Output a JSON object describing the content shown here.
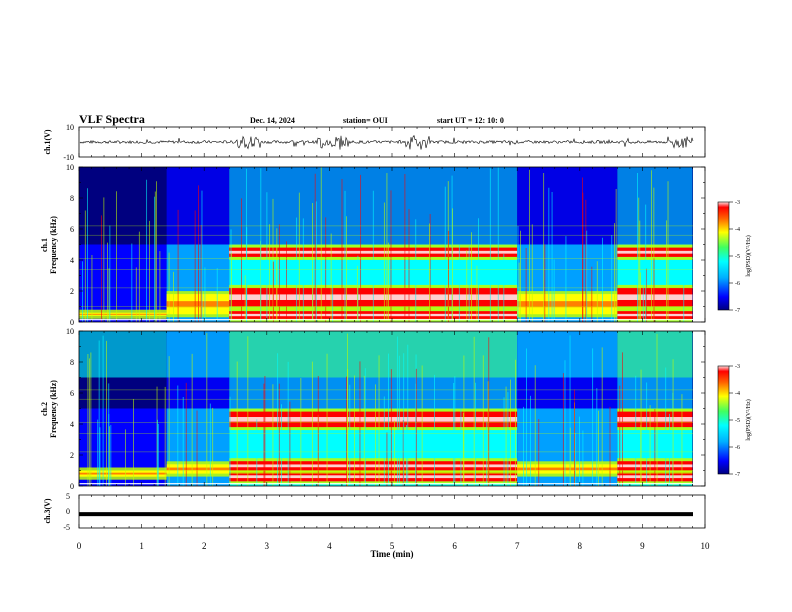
{
  "header": {
    "title": "VLF Spectra",
    "date": "Dec. 14, 2024",
    "station": "station= OUI",
    "start": "start  UT  =   12: 10: 0"
  },
  "chart_data": [
    {
      "type": "line",
      "panel": "ch1-waveform",
      "ylabel": "ch.1(V)",
      "ylim": [
        -10,
        10
      ],
      "yticks": [
        "10",
        "-10"
      ],
      "x_range": [
        0,
        10
      ],
      "baseline": 0,
      "burst_segments_min": [
        [
          2.5,
          2.9
        ],
        [
          3.8,
          4.3
        ],
        [
          5.2,
          5.6
        ],
        [
          9.4,
          9.8
        ]
      ]
    },
    {
      "type": "heatmap",
      "panel": "ch1-spectrogram",
      "ylabel": "ch.1\nFrequency (kHz)",
      "ylim": [
        0,
        10
      ],
      "yticks": [
        "0",
        "2",
        "4",
        "6",
        "8",
        "10"
      ],
      "colorbar": {
        "label": "log(PSD)(V²/Hz)",
        "range": [
          -7,
          -3
        ],
        "ticks": [
          "-3",
          "-4",
          "-5",
          "-6",
          "-7"
        ]
      },
      "segments": [
        {
          "t": [
            0.0,
            1.4
          ],
          "state": "quiet",
          "band_khz": [
            0.4,
            0.6
          ]
        },
        {
          "t": [
            1.4,
            2.4
          ],
          "state": "moderate",
          "band_khz": [
            0.5,
            1.8
          ]
        },
        {
          "t": [
            2.4,
            7.0
          ],
          "state": "active",
          "bands_khz": [
            [
              0.2,
              0.7
            ],
            [
              1.0,
              2.2
            ],
            [
              4.2,
              4.8
            ]
          ]
        },
        {
          "t": [
            7.0,
            8.6
          ],
          "state": "moderate",
          "band_khz": [
            0.5,
            1.8
          ]
        },
        {
          "t": [
            8.6,
            9.8
          ],
          "state": "active",
          "bands_khz": [
            [
              0.2,
              0.7
            ],
            [
              1.0,
              2.2
            ],
            [
              4.2,
              4.8
            ]
          ]
        }
      ]
    },
    {
      "type": "heatmap",
      "panel": "ch2-spectrogram",
      "ylabel": "ch.2\nFrequency (kHz)",
      "ylim": [
        0,
        10
      ],
      "yticks": [
        "0",
        "2",
        "4",
        "6",
        "8",
        "10"
      ],
      "colorbar": {
        "label": "log(PSD)(V²/Hz)",
        "range": [
          -7,
          -3
        ],
        "ticks": [
          "-3",
          "-4",
          "-5",
          "-6",
          "-7"
        ]
      },
      "segments": [
        {
          "t": [
            0.0,
            1.4
          ],
          "state": "quiet",
          "band_khz": [
            0.6,
            1.0
          ]
        },
        {
          "t": [
            1.4,
            2.4
          ],
          "state": "moderate",
          "band_khz": [
            0.8,
            1.4
          ]
        },
        {
          "t": [
            2.4,
            7.0
          ],
          "state": "active",
          "bands_khz": [
            [
              0.3,
              0.9
            ],
            [
              1.0,
              1.6
            ],
            [
              3.8,
              4.8
            ]
          ]
        },
        {
          "t": [
            7.0,
            8.6
          ],
          "state": "moderate",
          "band_khz": [
            0.8,
            1.4
          ]
        },
        {
          "t": [
            8.6,
            9.8
          ],
          "state": "active",
          "bands_khz": [
            [
              0.3,
              0.9
            ],
            [
              1.0,
              1.6
            ],
            [
              3.8,
              4.8
            ]
          ]
        }
      ]
    },
    {
      "type": "line",
      "panel": "ch3-waveform",
      "ylabel": "ch.3(V)",
      "ylim": [
        -5,
        5
      ],
      "yticks": [
        "5",
        "0",
        "-5"
      ],
      "value": -0.8
    }
  ],
  "xaxis": {
    "label": "Time (min)",
    "range": [
      0,
      10
    ],
    "ticks": [
      "0",
      "1",
      "2",
      "3",
      "4",
      "5",
      "6",
      "7",
      "8",
      "9",
      "10"
    ]
  },
  "colors": {
    "colormap": [
      "#00007f",
      "#0000ff",
      "#00a0ff",
      "#00ffff",
      "#40ff80",
      "#c0ff00",
      "#ffff00",
      "#ff8000",
      "#ff0000",
      "#ffd0d0",
      "#ffffff"
    ]
  }
}
